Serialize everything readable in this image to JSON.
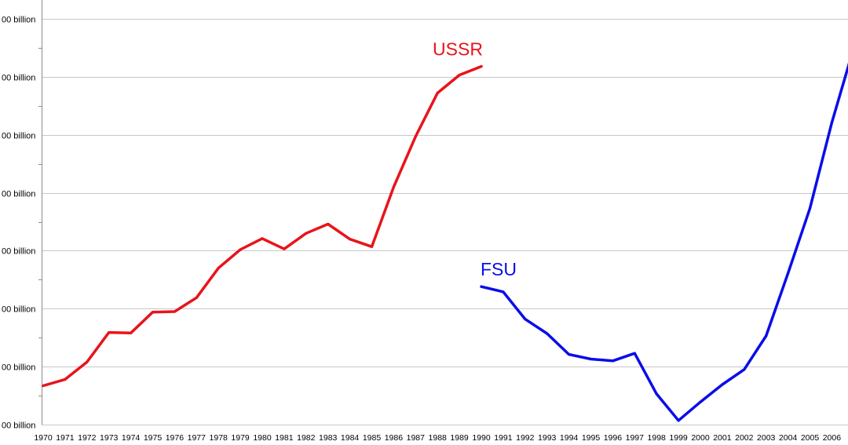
{
  "chart_data": {
    "type": "line",
    "title": "",
    "xlabel": "",
    "ylabel": "",
    "grid": true,
    "ylim": [
      0,
      7
    ],
    "y_ticks": [
      {
        "value": 0,
        "label": "00 billion"
      },
      {
        "value": 1,
        "label": "00 billion"
      },
      {
        "value": 2,
        "label": "00 billion"
      },
      {
        "value": 3,
        "label": "00 billion"
      },
      {
        "value": 4,
        "label": "00 billion"
      },
      {
        "value": 5,
        "label": "00 billion"
      },
      {
        "value": 6,
        "label": "00 billion"
      },
      {
        "value": 7,
        "label": "00 billion"
      }
    ],
    "x_ticks": [
      "1970",
      "1971",
      "1972",
      "1973",
      "1974",
      "1975",
      "1976",
      "1977",
      "1978",
      "1979",
      "1980",
      "1981",
      "1982",
      "1983",
      "1984",
      "1985",
      "1986",
      "1987",
      "1988",
      "1989",
      "1990",
      "1991",
      "1992",
      "1993",
      "1994",
      "1995",
      "1996",
      "1997",
      "1998",
      "1999",
      "2000",
      "2001",
      "2002",
      "2003",
      "2004",
      "2005",
      "2006"
    ],
    "series": [
      {
        "name": "USSR",
        "color": "#e8141b",
        "x": [
          "1970",
          "1971",
          "1972",
          "1973",
          "1974",
          "1975",
          "1976",
          "1977",
          "1978",
          "1979",
          "1980",
          "1981",
          "1982",
          "1983",
          "1984",
          "1985",
          "1986",
          "1987",
          "1988",
          "1989",
          "1990"
        ],
        "values": [
          0.67,
          0.78,
          1.08,
          1.59,
          1.58,
          1.94,
          1.95,
          2.19,
          2.7,
          3.02,
          3.21,
          3.03,
          3.3,
          3.46,
          3.2,
          3.07,
          4.1,
          4.97,
          5.72,
          6.03,
          6.18
        ]
      },
      {
        "name": "FSU",
        "color": "#0a0de8",
        "x": [
          "1990",
          "1991",
          "1992",
          "1993",
          "1994",
          "1995",
          "1996",
          "1997",
          "1998",
          "1999",
          "2000",
          "2001",
          "2002",
          "2003",
          "2004",
          "2005",
          "2006",
          "2007"
        ],
        "values": [
          2.38,
          2.29,
          1.82,
          1.57,
          1.21,
          1.13,
          1.1,
          1.23,
          0.53,
          0.07,
          0.39,
          0.69,
          0.95,
          1.53,
          2.61,
          3.73,
          5.21,
          6.5
        ]
      }
    ]
  }
}
